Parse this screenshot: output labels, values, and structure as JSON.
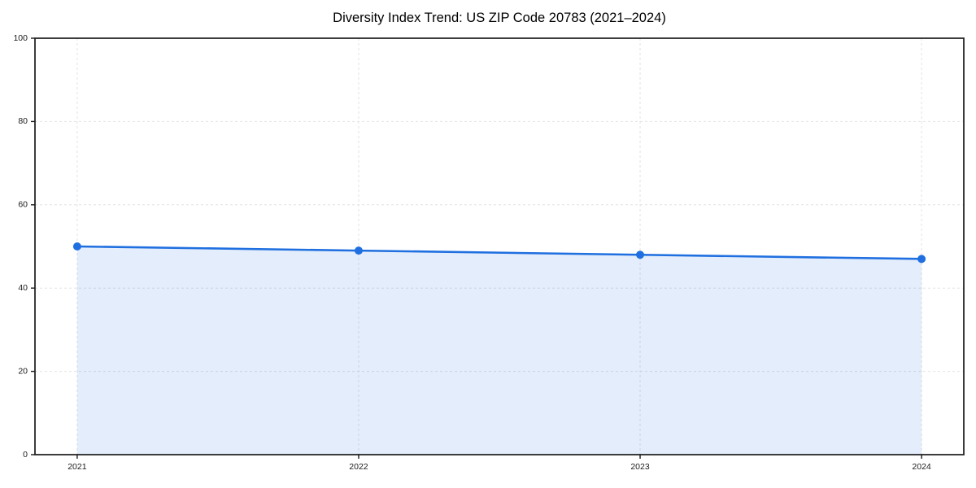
{
  "title": "Diversity Index Trend: US ZIP Code 20783 (2021–2024)",
  "chart_data": {
    "type": "area",
    "title": "Diversity Index Trend: US ZIP Code 20783 (2021–2024)",
    "x": [
      2021,
      2022,
      2023,
      2024
    ],
    "values": [
      50,
      49,
      48,
      47
    ],
    "xticks": [
      "2021",
      "2022",
      "2023",
      "2024"
    ],
    "yticks": [
      0,
      20,
      40,
      60,
      80,
      100
    ],
    "xlim": [
      2020.85,
      2024.15
    ],
    "ylim": [
      0,
      100
    ],
    "xlabel": "",
    "ylabel": "",
    "grid": true,
    "legend": "none",
    "colors": {
      "line": "#1f6fe0",
      "marker": "#1f6fe0",
      "fill": "rgba(31,111,224,0.12)",
      "gridline": "#e2e2e2",
      "spine": "#1a1a1a",
      "tick_label": "#1a1a1a"
    }
  }
}
